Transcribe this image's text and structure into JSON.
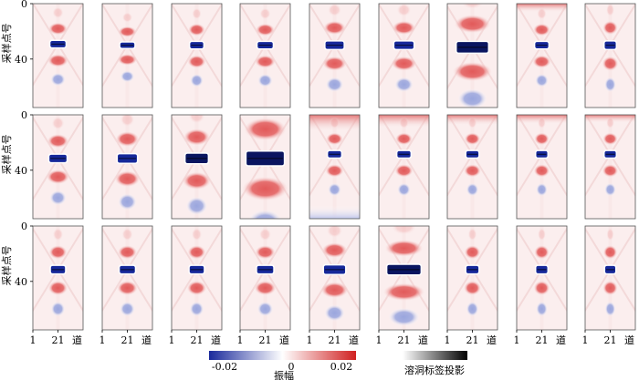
{
  "chart_data": {
    "type": "heatmap",
    "grid": {
      "rows": 3,
      "cols": 9
    },
    "ylabel": "采样点号",
    "x_tick_labels": [
      "1",
      "21",
      "道"
    ],
    "y_tick_labels": [
      "0",
      "40"
    ],
    "yticks": [
      0,
      40
    ],
    "xticks": [
      1,
      21
    ],
    "x_range": [
      1,
      41
    ],
    "y_range": [
      0,
      75
    ],
    "colorbar_amplitude": {
      "label": "振幅",
      "ticks": [
        -0.02,
        0,
        0.02
      ],
      "tick_labels": [
        "-0.02",
        "0",
        "0.02"
      ],
      "colormap": [
        "#1a2a9c",
        "#ffffff",
        "#d02020"
      ]
    },
    "colorbar_label": {
      "label": "溶洞标签投影",
      "colormap": [
        "#ffffff",
        "#000000"
      ]
    },
    "panels": [
      {
        "row": 0,
        "col": 0,
        "cavity_width": 0.3,
        "cavity_height": 0.06,
        "strength": 1.0,
        "band_top": 0.0,
        "band_bottom": 0.0,
        "cavity_y": 0.39
      },
      {
        "row": 0,
        "col": 1,
        "cavity_width": 0.28,
        "cavity_height": 0.05,
        "strength": 0.9,
        "band_top": 0.0,
        "band_bottom": 0.0,
        "cavity_y": 0.4
      },
      {
        "row": 0,
        "col": 2,
        "cavity_width": 0.26,
        "cavity_height": 0.06,
        "strength": 0.9,
        "band_top": 0.0,
        "band_bottom": 0.0,
        "cavity_y": 0.4
      },
      {
        "row": 0,
        "col": 3,
        "cavity_width": 0.3,
        "cavity_height": 0.06,
        "strength": 0.95,
        "band_top": 0.0,
        "band_bottom": 0.0,
        "cavity_y": 0.4
      },
      {
        "row": 0,
        "col": 4,
        "cavity_width": 0.36,
        "cavity_height": 0.07,
        "strength": 1.0,
        "band_top": 0.0,
        "band_bottom": 0.0,
        "cavity_y": 0.4
      },
      {
        "row": 0,
        "col": 5,
        "cavity_width": 0.38,
        "cavity_height": 0.07,
        "strength": 1.0,
        "band_top": 0.0,
        "band_bottom": 0.0,
        "cavity_y": 0.4
      },
      {
        "row": 0,
        "col": 6,
        "cavity_width": 0.62,
        "cavity_height": 0.1,
        "strength": 1.3,
        "band_top": 0.0,
        "band_bottom": 0.0,
        "cavity_y": 0.42
      },
      {
        "row": 0,
        "col": 7,
        "cavity_width": 0.26,
        "cavity_height": 0.06,
        "strength": 0.8,
        "band_top": 0.35,
        "band_bottom": 0.0,
        "cavity_y": 0.4
      },
      {
        "row": 0,
        "col": 8,
        "cavity_width": 0.22,
        "cavity_height": 0.07,
        "strength": 0.8,
        "band_top": 0.0,
        "band_bottom": 0.0,
        "cavity_y": 0.4
      },
      {
        "row": 1,
        "col": 0,
        "cavity_width": 0.34,
        "cavity_height": 0.07,
        "strength": 1.0,
        "band_top": 0.0,
        "band_bottom": 0.0,
        "cavity_y": 0.42
      },
      {
        "row": 1,
        "col": 1,
        "cavity_width": 0.38,
        "cavity_height": 0.08,
        "strength": 1.1,
        "band_top": 0.0,
        "band_bottom": 0.0,
        "cavity_y": 0.42
      },
      {
        "row": 1,
        "col": 2,
        "cavity_width": 0.44,
        "cavity_height": 0.09,
        "strength": 1.2,
        "band_top": 0.0,
        "band_bottom": 0.0,
        "cavity_y": 0.42
      },
      {
        "row": 1,
        "col": 3,
        "cavity_width": 0.74,
        "cavity_height": 0.13,
        "strength": 1.5,
        "band_top": 0.0,
        "band_bottom": 0.0,
        "cavity_y": 0.42
      },
      {
        "row": 1,
        "col": 4,
        "cavity_width": 0.26,
        "cavity_height": 0.06,
        "strength": 0.7,
        "band_top": 1.0,
        "band_bottom": 0.9,
        "cavity_y": 0.38
      },
      {
        "row": 1,
        "col": 5,
        "cavity_width": 0.26,
        "cavity_height": 0.06,
        "strength": 0.7,
        "band_top": 0.7,
        "band_bottom": 0.0,
        "cavity_y": 0.38
      },
      {
        "row": 1,
        "col": 6,
        "cavity_width": 0.24,
        "cavity_height": 0.06,
        "strength": 0.7,
        "band_top": 0.5,
        "band_bottom": 0.0,
        "cavity_y": 0.38
      },
      {
        "row": 1,
        "col": 7,
        "cavity_width": 0.22,
        "cavity_height": 0.06,
        "strength": 0.7,
        "band_top": 0.4,
        "band_bottom": 0.0,
        "cavity_y": 0.38
      },
      {
        "row": 1,
        "col": 8,
        "cavity_width": 0.22,
        "cavity_height": 0.06,
        "strength": 0.7,
        "band_top": 0.3,
        "band_bottom": 0.0,
        "cavity_y": 0.38
      },
      {
        "row": 2,
        "col": 0,
        "cavity_width": 0.28,
        "cavity_height": 0.07,
        "strength": 0.9,
        "band_top": 0.0,
        "band_bottom": 0.0,
        "cavity_y": 0.42
      },
      {
        "row": 2,
        "col": 1,
        "cavity_width": 0.3,
        "cavity_height": 0.07,
        "strength": 0.9,
        "band_top": 0.0,
        "band_bottom": 0.0,
        "cavity_y": 0.42
      },
      {
        "row": 2,
        "col": 2,
        "cavity_width": 0.28,
        "cavity_height": 0.07,
        "strength": 0.9,
        "band_top": 0.0,
        "band_bottom": 0.0,
        "cavity_y": 0.42
      },
      {
        "row": 2,
        "col": 3,
        "cavity_width": 0.32,
        "cavity_height": 0.07,
        "strength": 0.95,
        "band_top": 0.0,
        "band_bottom": 0.0,
        "cavity_y": 0.42
      },
      {
        "row": 2,
        "col": 4,
        "cavity_width": 0.42,
        "cavity_height": 0.08,
        "strength": 1.0,
        "band_top": 0.0,
        "band_bottom": 0.0,
        "cavity_y": 0.42
      },
      {
        "row": 2,
        "col": 5,
        "cavity_width": 0.66,
        "cavity_height": 0.09,
        "strength": 1.3,
        "band_top": 0.0,
        "band_bottom": 0.0,
        "cavity_y": 0.42
      },
      {
        "row": 2,
        "col": 6,
        "cavity_width": 0.24,
        "cavity_height": 0.07,
        "strength": 0.8,
        "band_top": 0.0,
        "band_bottom": 0.0,
        "cavity_y": 0.42
      },
      {
        "row": 2,
        "col": 7,
        "cavity_width": 0.22,
        "cavity_height": 0.07,
        "strength": 0.8,
        "band_top": 0.0,
        "band_bottom": 0.0,
        "cavity_y": 0.42
      },
      {
        "row": 2,
        "col": 8,
        "cavity_width": 0.2,
        "cavity_height": 0.07,
        "strength": 0.8,
        "band_top": 0.0,
        "band_bottom": 0.0,
        "cavity_y": 0.42
      }
    ]
  }
}
